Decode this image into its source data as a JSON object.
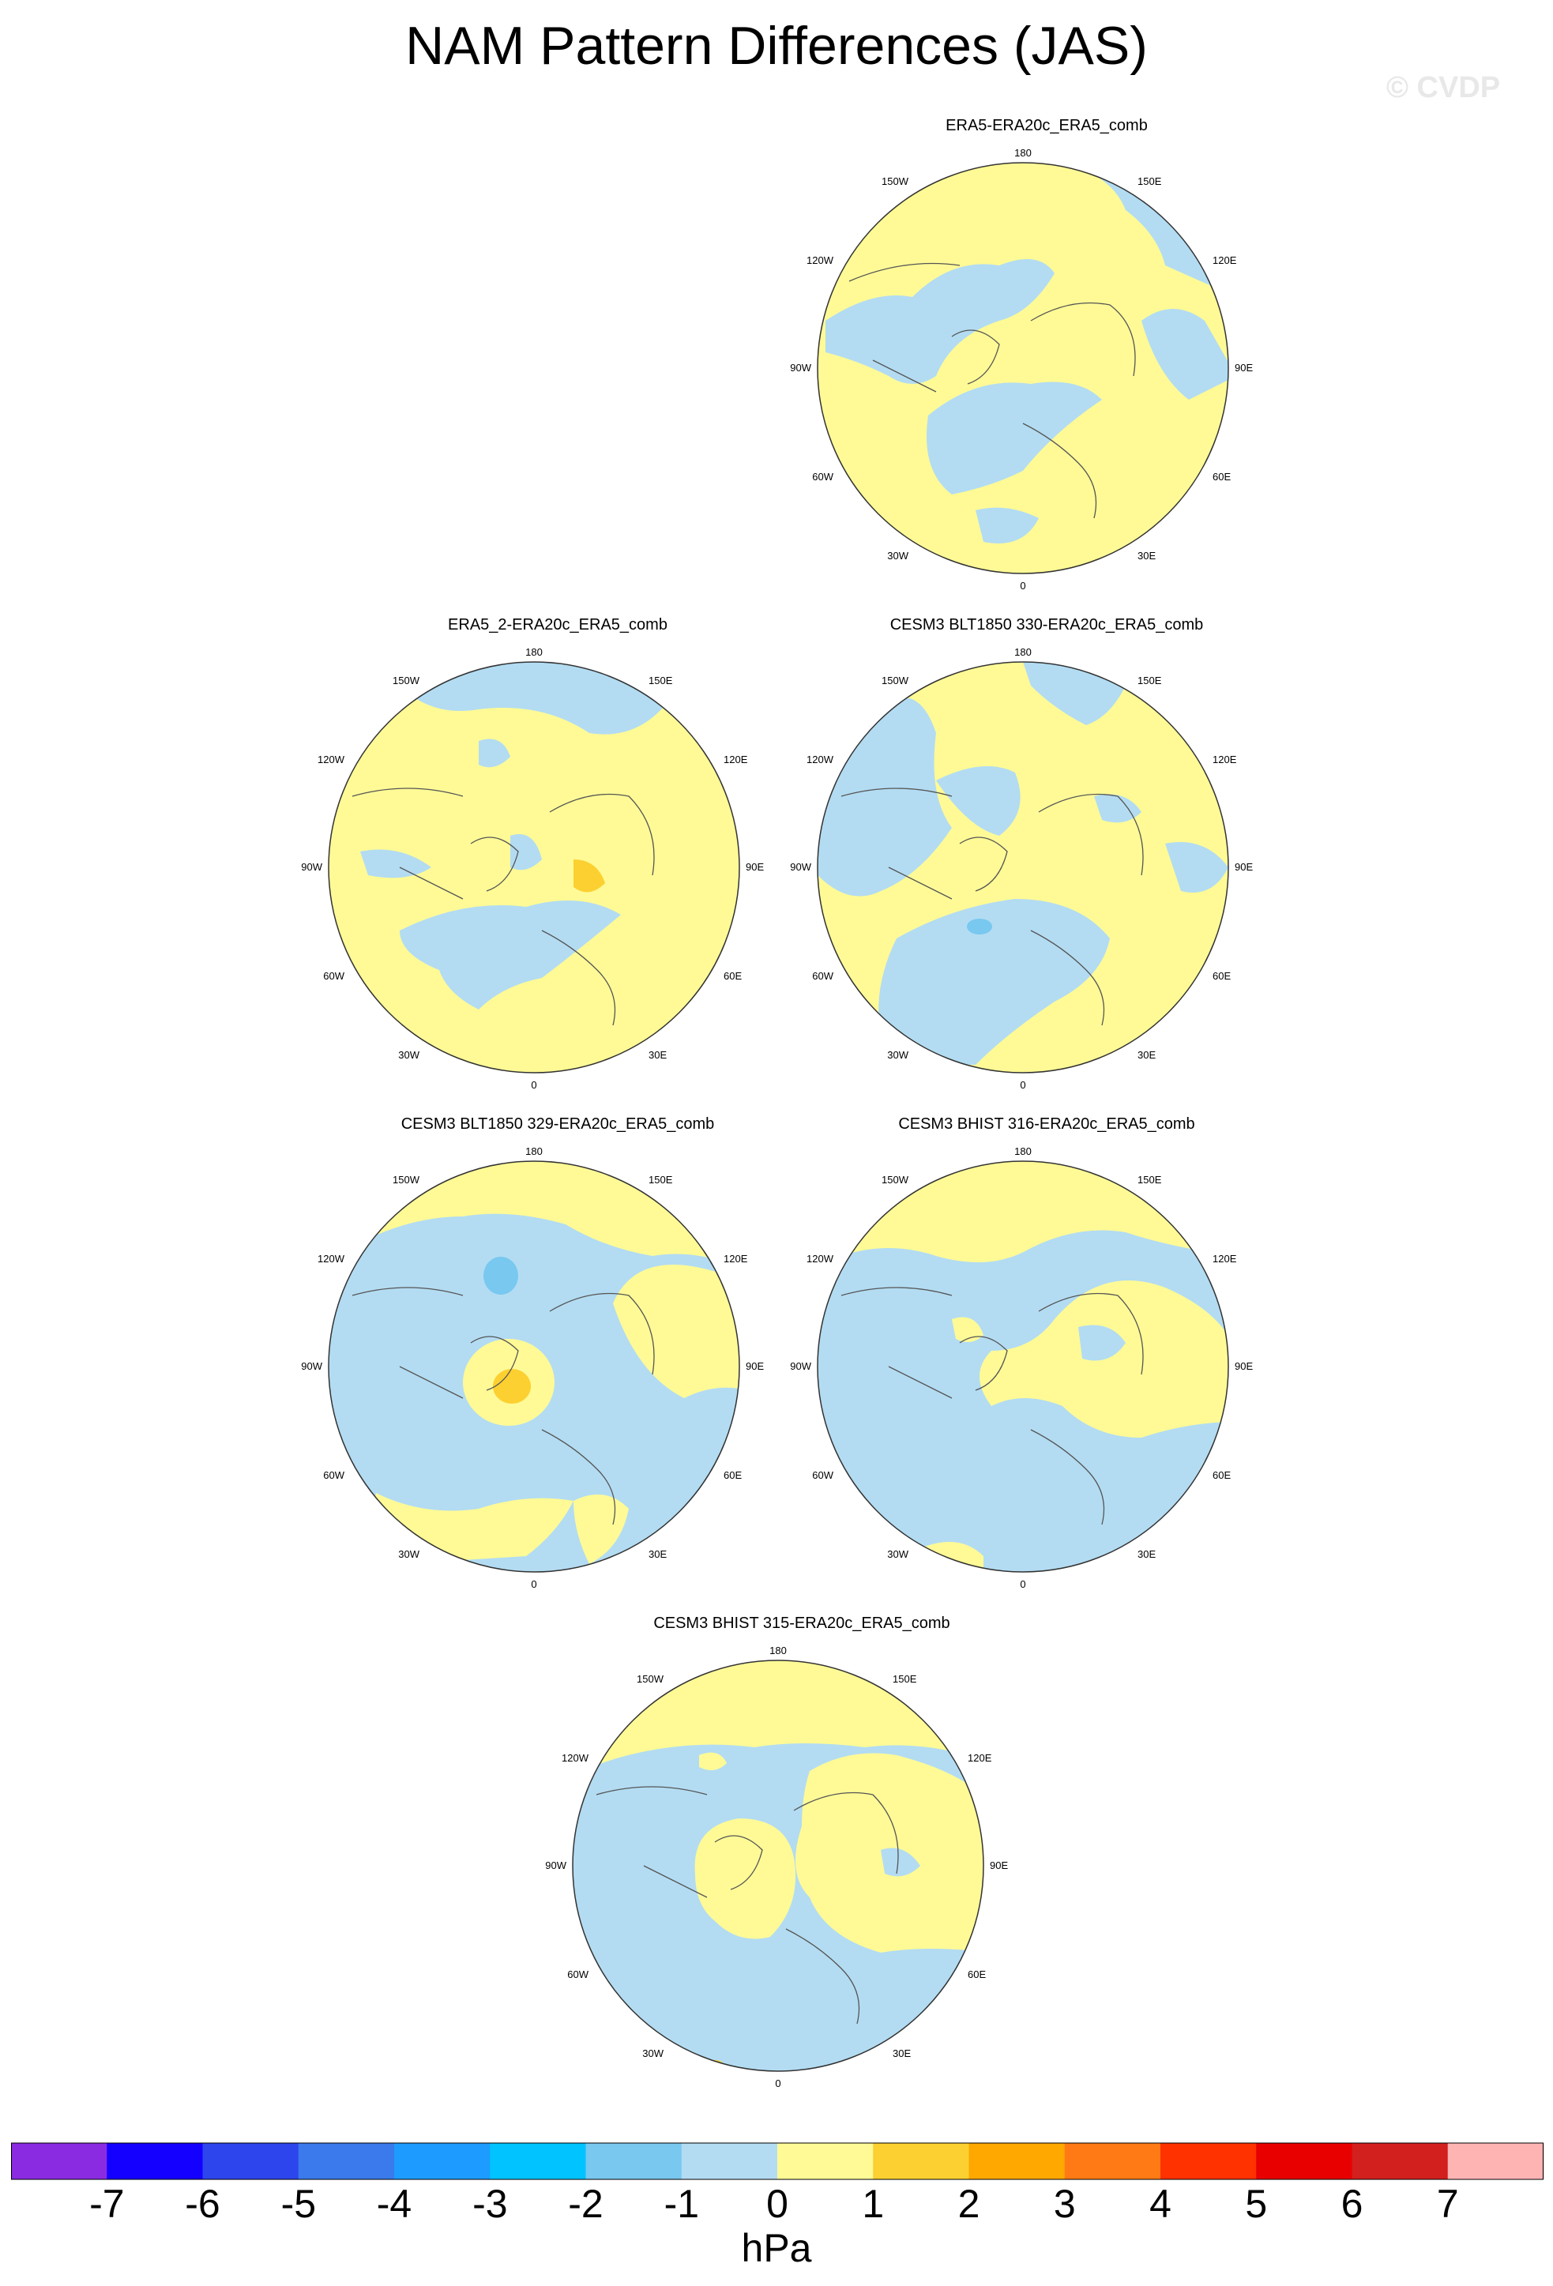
{
  "title": "NAM Pattern Differences (JAS)",
  "watermark": "© CVDP",
  "units": "hPa",
  "colors": {
    "negative_small": "#b3dcf2",
    "negative_medium": "#78c8f0",
    "negative_strong": "#4a9fe0",
    "positive_small": "#fffa96",
    "positive_medium": "#fcd030",
    "coast": "#555555"
  },
  "longitude_labels": {
    "top": "180",
    "bottom": "0",
    "left": "90W",
    "right": "90E",
    "upper_left_outer": "150W",
    "upper_right_outer": "150E",
    "upper_left_inner": "120W",
    "upper_right_inner": "120E",
    "lower_left_inner": "60W",
    "lower_right_inner": "60E",
    "lower_left_outer": "30W",
    "lower_right_outer": "30E"
  },
  "panels": [
    {
      "title": "ERA5-ERA20c_ERA5_comb"
    },
    {
      "title": "ERA5_2-ERA20c_ERA5_comb"
    },
    {
      "title": "CESM3 BLT1850 330-ERA20c_ERA5_comb"
    },
    {
      "title": "CESM3 BLT1850 329-ERA20c_ERA5_comb"
    },
    {
      "title": "CESM3 BHIST 316-ERA20c_ERA5_comb"
    },
    {
      "title": "CESM3 BHIST 315-ERA20c_ERA5_comb"
    }
  ],
  "colorbar": {
    "tick_labels": [
      "-7",
      "-6",
      "-5",
      "-4",
      "-3",
      "-2",
      "-1",
      "0",
      "1",
      "2",
      "3",
      "4",
      "5",
      "6",
      "7"
    ],
    "swatch_colors": [
      "#8a2be2",
      "#1400ff",
      "#2c45ec",
      "#3a7aec",
      "#1e9bff",
      "#00c3ff",
      "#78c8f0",
      "#b3dcf2",
      "#fffa96",
      "#fcd030",
      "#ffa800",
      "#ff7a14",
      "#ff3200",
      "#e80000",
      "#d2201e",
      "#ffb4b4"
    ]
  }
}
